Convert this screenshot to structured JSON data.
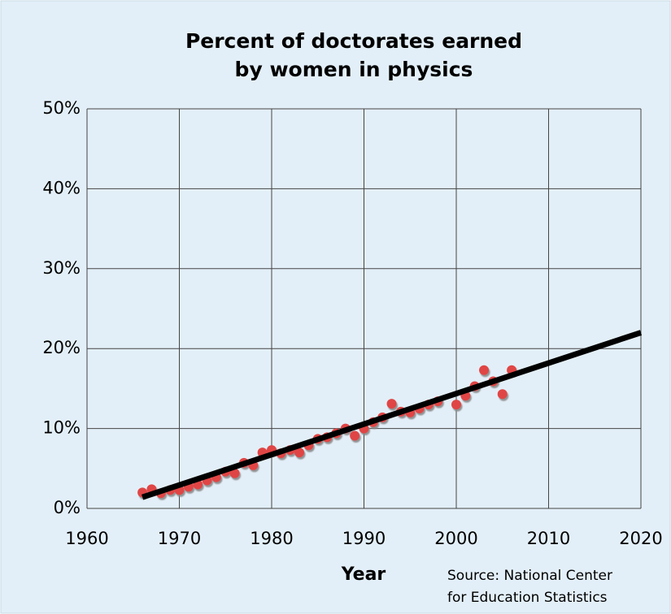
{
  "chart_data": {
    "type": "scatter",
    "title": [
      "Percent of doctorates earned",
      "by women in physics"
    ],
    "x_label": "Year",
    "source": [
      "Source: National Center",
      "for Education Statistics"
    ],
    "series": [
      {
        "color": "#e04545",
        "x": [
          1966,
          1967,
          1968,
          1969,
          1970,
          1971,
          1972,
          1973,
          1974,
          1975,
          1976,
          1977,
          1978,
          1979,
          1980,
          1981,
          1982,
          1983,
          1984,
          1985,
          1986,
          1987,
          1988,
          1989,
          1990,
          1991,
          1992,
          1993,
          1994,
          1995,
          1996,
          1997,
          1998,
          2000,
          2001,
          2002,
          2003,
          2004,
          2005,
          2006
        ],
        "values": [
          2.0,
          2.4,
          1.9,
          2.3,
          2.3,
          2.7,
          3.0,
          3.5,
          3.9,
          4.6,
          4.4,
          5.7,
          5.4,
          7.0,
          7.3,
          6.9,
          7.3,
          7.0,
          7.9,
          8.7,
          8.9,
          9.4,
          10.0,
          9.1,
          10.0,
          10.8,
          11.4,
          13.1,
          12.1,
          12.0,
          12.5,
          13.0,
          13.4,
          13.0,
          14.1,
          15.3,
          17.3,
          15.9,
          14.3,
          17.3
        ]
      }
    ],
    "trendline": {
      "color": "#000000",
      "x": [
        1966,
        2020
      ],
      "values": [
        1.4,
        22
      ]
    },
    "xlim": [
      1960,
      2020
    ],
    "xticks": [
      1960,
      1970,
      1980,
      1990,
      2000,
      2010,
      2020
    ],
    "ylim": [
      0,
      50
    ],
    "yticks": [
      {
        "value": 0,
        "label": "0%"
      },
      {
        "value": 10,
        "label": "10%"
      },
      {
        "value": 20,
        "label": "20%"
      },
      {
        "value": 30,
        "label": "30%"
      },
      {
        "value": 40,
        "label": "40%"
      },
      {
        "value": 50,
        "label": "50%"
      }
    ],
    "grid": true
  }
}
